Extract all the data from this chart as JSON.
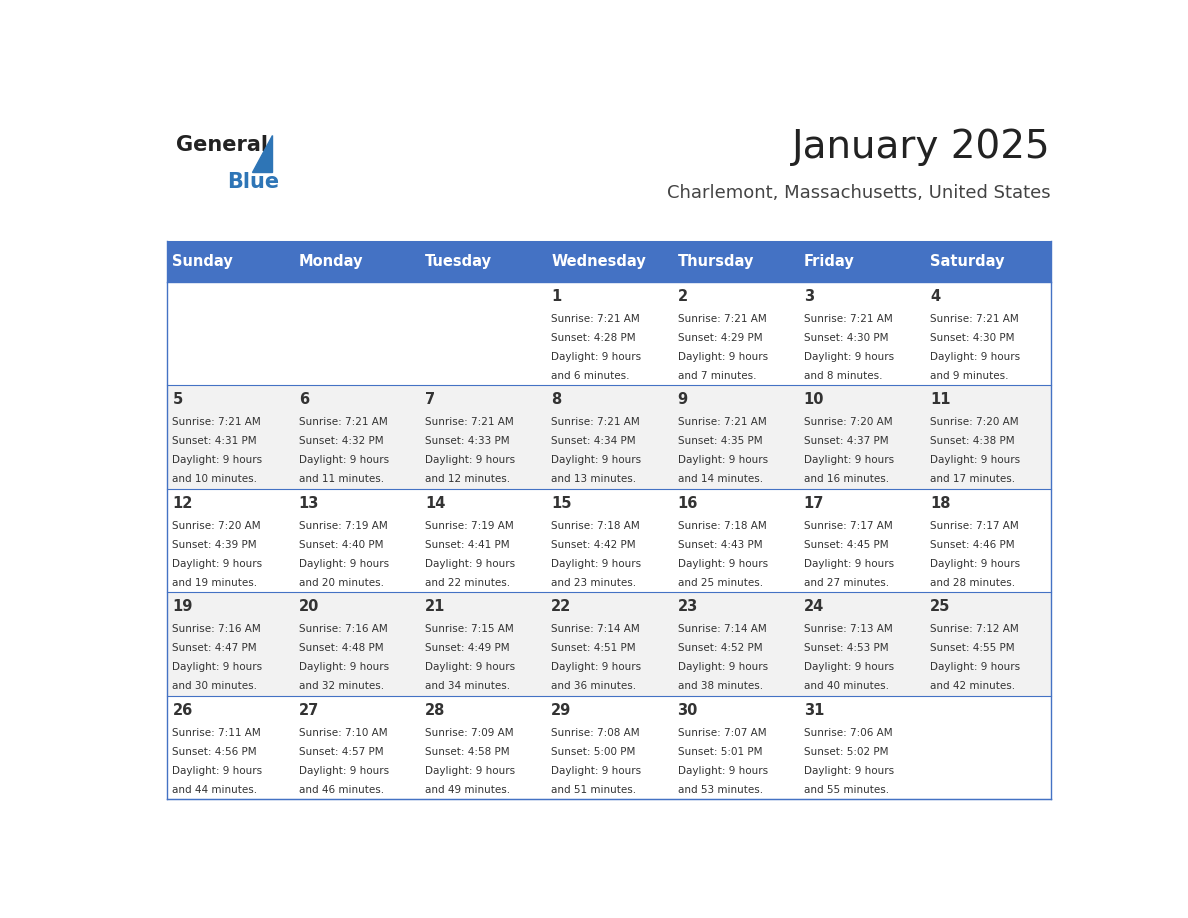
{
  "title": "January 2025",
  "subtitle": "Charlemont, Massachusetts, United States",
  "header_color": "#4472C4",
  "header_text_color": "#FFFFFF",
  "header_days": [
    "Sunday",
    "Monday",
    "Tuesday",
    "Wednesday",
    "Thursday",
    "Friday",
    "Saturday"
  ],
  "title_color": "#222222",
  "subtitle_color": "#444444",
  "cell_border_color": "#4472C4",
  "day_number_color": "#333333",
  "info_text_color": "#333333",
  "alt_row_color": "#F2F2F2",
  "white_row_color": "#FFFFFF",
  "logo_general_color": "#222222",
  "logo_blue_color": "#2E75B6",
  "calendar_data": [
    [
      null,
      null,
      null,
      {
        "day": 1,
        "sunrise": "7:21 AM",
        "sunset": "4:28 PM",
        "daylight": "9 hours and 6 minutes."
      },
      {
        "day": 2,
        "sunrise": "7:21 AM",
        "sunset": "4:29 PM",
        "daylight": "9 hours and 7 minutes."
      },
      {
        "day": 3,
        "sunrise": "7:21 AM",
        "sunset": "4:30 PM",
        "daylight": "9 hours and 8 minutes."
      },
      {
        "day": 4,
        "sunrise": "7:21 AM",
        "sunset": "4:30 PM",
        "daylight": "9 hours and 9 minutes."
      }
    ],
    [
      {
        "day": 5,
        "sunrise": "7:21 AM",
        "sunset": "4:31 PM",
        "daylight": "9 hours and 10 minutes."
      },
      {
        "day": 6,
        "sunrise": "7:21 AM",
        "sunset": "4:32 PM",
        "daylight": "9 hours and 11 minutes."
      },
      {
        "day": 7,
        "sunrise": "7:21 AM",
        "sunset": "4:33 PM",
        "daylight": "9 hours and 12 minutes."
      },
      {
        "day": 8,
        "sunrise": "7:21 AM",
        "sunset": "4:34 PM",
        "daylight": "9 hours and 13 minutes."
      },
      {
        "day": 9,
        "sunrise": "7:21 AM",
        "sunset": "4:35 PM",
        "daylight": "9 hours and 14 minutes."
      },
      {
        "day": 10,
        "sunrise": "7:20 AM",
        "sunset": "4:37 PM",
        "daylight": "9 hours and 16 minutes."
      },
      {
        "day": 11,
        "sunrise": "7:20 AM",
        "sunset": "4:38 PM",
        "daylight": "9 hours and 17 minutes."
      }
    ],
    [
      {
        "day": 12,
        "sunrise": "7:20 AM",
        "sunset": "4:39 PM",
        "daylight": "9 hours and 19 minutes."
      },
      {
        "day": 13,
        "sunrise": "7:19 AM",
        "sunset": "4:40 PM",
        "daylight": "9 hours and 20 minutes."
      },
      {
        "day": 14,
        "sunrise": "7:19 AM",
        "sunset": "4:41 PM",
        "daylight": "9 hours and 22 minutes."
      },
      {
        "day": 15,
        "sunrise": "7:18 AM",
        "sunset": "4:42 PM",
        "daylight": "9 hours and 23 minutes."
      },
      {
        "day": 16,
        "sunrise": "7:18 AM",
        "sunset": "4:43 PM",
        "daylight": "9 hours and 25 minutes."
      },
      {
        "day": 17,
        "sunrise": "7:17 AM",
        "sunset": "4:45 PM",
        "daylight": "9 hours and 27 minutes."
      },
      {
        "day": 18,
        "sunrise": "7:17 AM",
        "sunset": "4:46 PM",
        "daylight": "9 hours and 28 minutes."
      }
    ],
    [
      {
        "day": 19,
        "sunrise": "7:16 AM",
        "sunset": "4:47 PM",
        "daylight": "9 hours and 30 minutes."
      },
      {
        "day": 20,
        "sunrise": "7:16 AM",
        "sunset": "4:48 PM",
        "daylight": "9 hours and 32 minutes."
      },
      {
        "day": 21,
        "sunrise": "7:15 AM",
        "sunset": "4:49 PM",
        "daylight": "9 hours and 34 minutes."
      },
      {
        "day": 22,
        "sunrise": "7:14 AM",
        "sunset": "4:51 PM",
        "daylight": "9 hours and 36 minutes."
      },
      {
        "day": 23,
        "sunrise": "7:14 AM",
        "sunset": "4:52 PM",
        "daylight": "9 hours and 38 minutes."
      },
      {
        "day": 24,
        "sunrise": "7:13 AM",
        "sunset": "4:53 PM",
        "daylight": "9 hours and 40 minutes."
      },
      {
        "day": 25,
        "sunrise": "7:12 AM",
        "sunset": "4:55 PM",
        "daylight": "9 hours and 42 minutes."
      }
    ],
    [
      {
        "day": 26,
        "sunrise": "7:11 AM",
        "sunset": "4:56 PM",
        "daylight": "9 hours and 44 minutes."
      },
      {
        "day": 27,
        "sunrise": "7:10 AM",
        "sunset": "4:57 PM",
        "daylight": "9 hours and 46 minutes."
      },
      {
        "day": 28,
        "sunrise": "7:09 AM",
        "sunset": "4:58 PM",
        "daylight": "9 hours and 49 minutes."
      },
      {
        "day": 29,
        "sunrise": "7:08 AM",
        "sunset": "5:00 PM",
        "daylight": "9 hours and 51 minutes."
      },
      {
        "day": 30,
        "sunrise": "7:07 AM",
        "sunset": "5:01 PM",
        "daylight": "9 hours and 53 minutes."
      },
      {
        "day": 31,
        "sunrise": "7:06 AM",
        "sunset": "5:02 PM",
        "daylight": "9 hours and 55 minutes."
      },
      null
    ]
  ]
}
